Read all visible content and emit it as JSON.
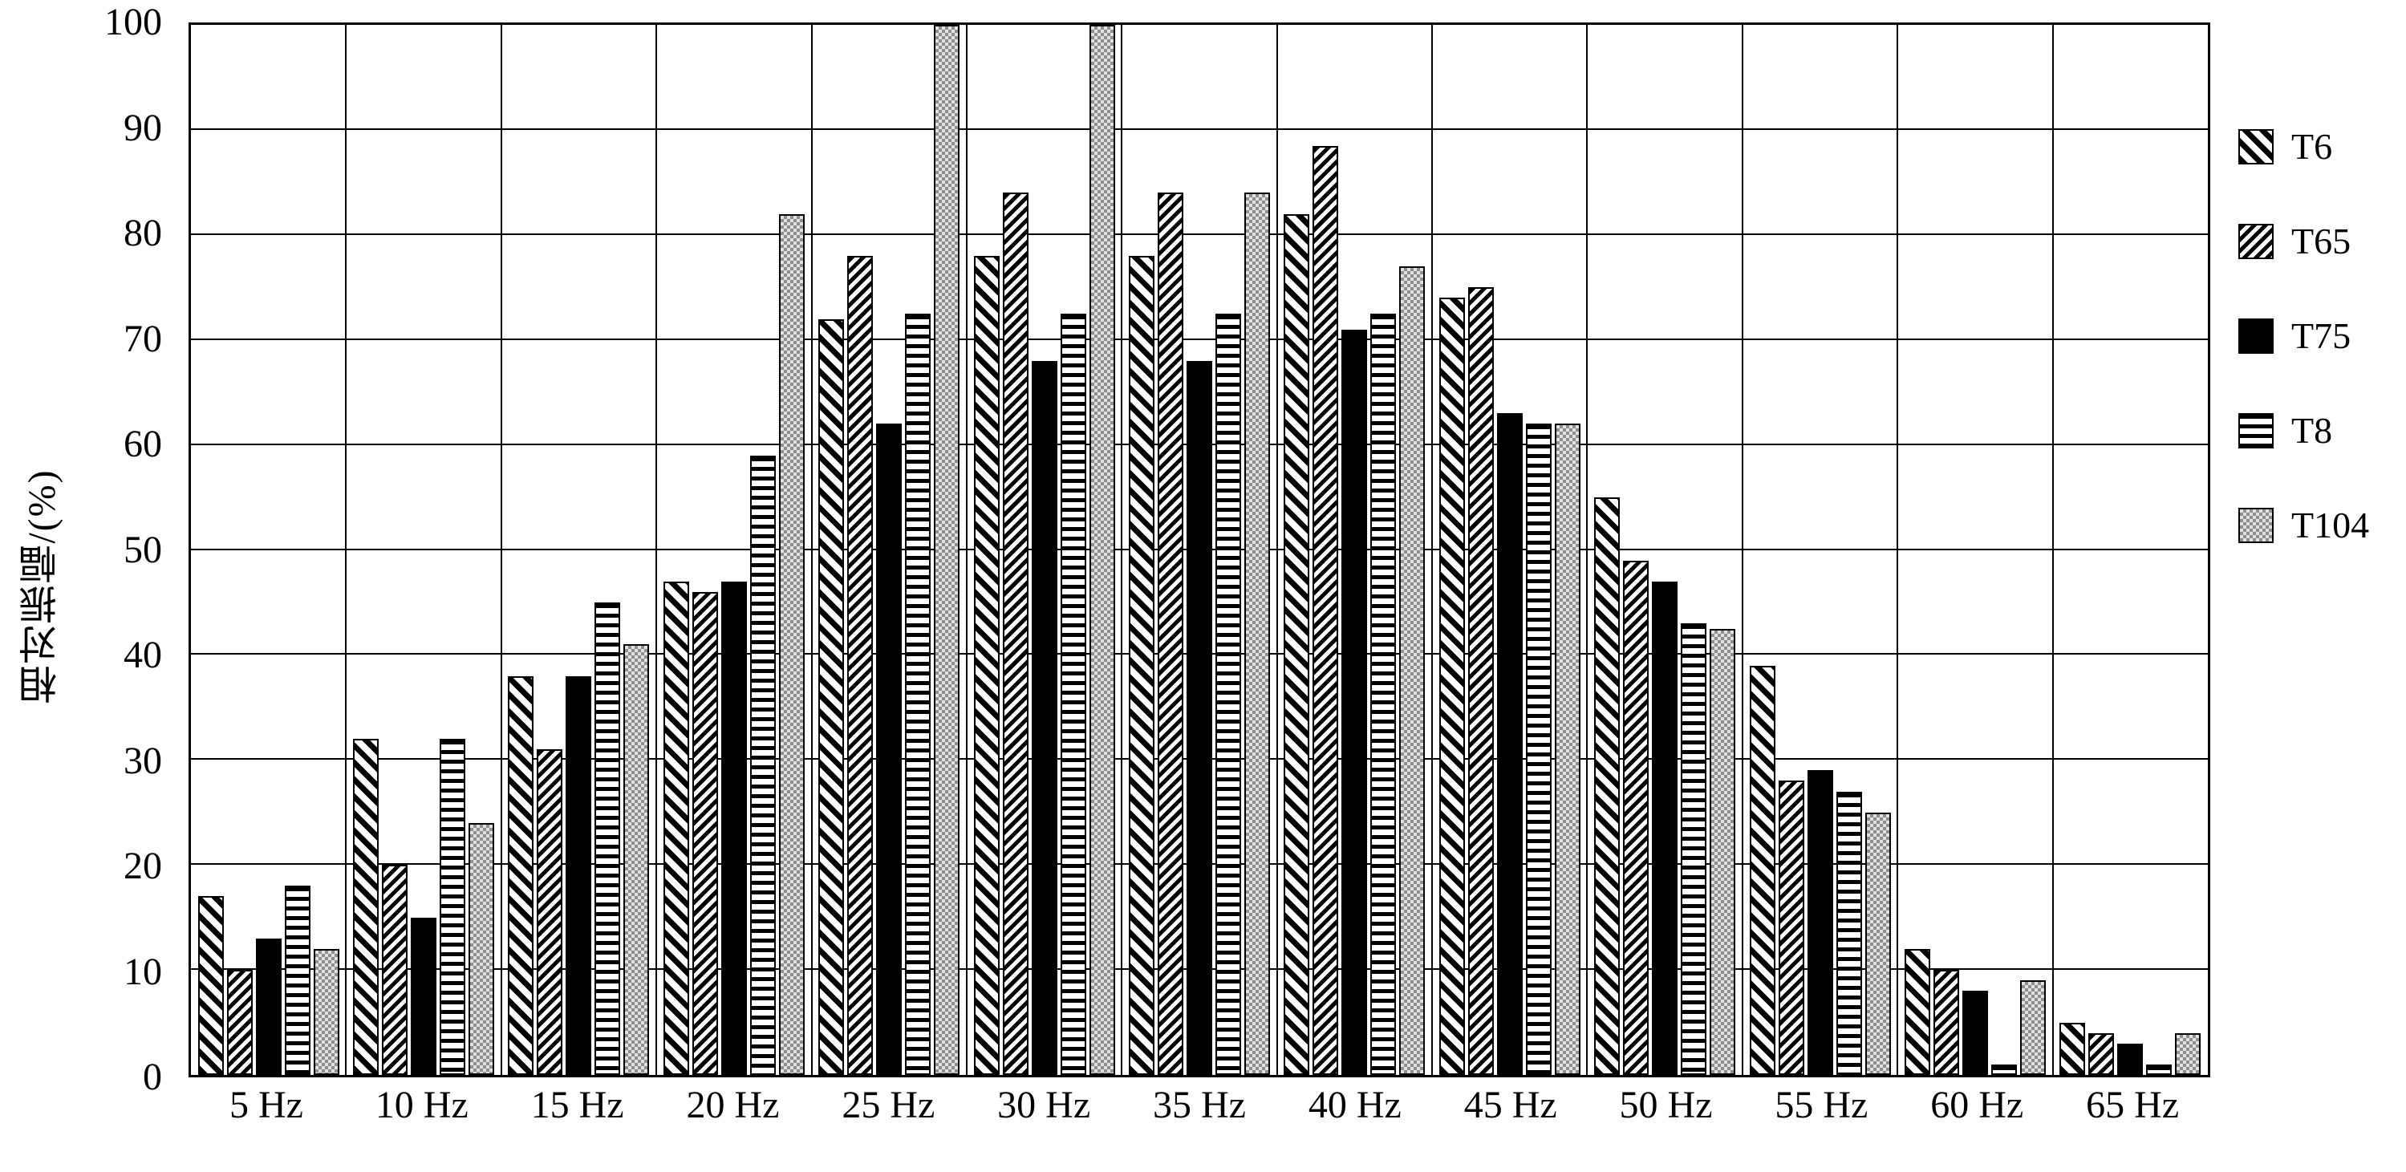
{
  "figure": {
    "background": "#ffffff",
    "bar_color": "#000000",
    "grid_color": "#000000",
    "t104_gray": "#8f8f8f"
  },
  "chart_data": {
    "type": "bar",
    "title": "",
    "xlabel": "",
    "ylabel": "相对振幅/(%)",
    "ylim": [
      0,
      100
    ],
    "yticks": [
      0,
      10,
      20,
      30,
      40,
      50,
      60,
      70,
      80,
      90,
      100
    ],
    "grid": true,
    "legend_position": "right",
    "categories": [
      "5 Hz",
      "10 Hz",
      "15 Hz",
      "20 Hz",
      "25 Hz",
      "30 Hz",
      "35 Hz",
      "40 Hz",
      "45 Hz",
      "50 Hz",
      "55 Hz",
      "60 Hz",
      "65 Hz"
    ],
    "series": [
      {
        "name": "T6",
        "pattern": "diagonal-forward",
        "values": [
          17,
          32,
          38,
          47,
          72,
          78,
          78,
          82,
          74,
          55,
          39,
          12,
          5
        ]
      },
      {
        "name": "T65",
        "pattern": "diagonal-back",
        "values": [
          10,
          20,
          31,
          46,
          78,
          84,
          84,
          88.5,
          75,
          49,
          28,
          10,
          4
        ]
      },
      {
        "name": "T75",
        "pattern": "solid",
        "values": [
          13,
          15,
          38,
          47,
          62,
          68,
          68,
          71,
          63,
          47,
          29,
          8,
          3
        ]
      },
      {
        "name": "T8",
        "pattern": "horizontal-dash",
        "values": [
          18,
          32,
          45,
          59,
          72.5,
          72.5,
          72.5,
          72.5,
          62,
          43,
          27,
          1,
          1
        ]
      },
      {
        "name": "T104",
        "pattern": "dotted",
        "values": [
          12,
          24,
          41,
          82,
          100,
          100,
          84,
          77,
          62,
          42.5,
          25,
          9,
          4
        ]
      }
    ]
  }
}
